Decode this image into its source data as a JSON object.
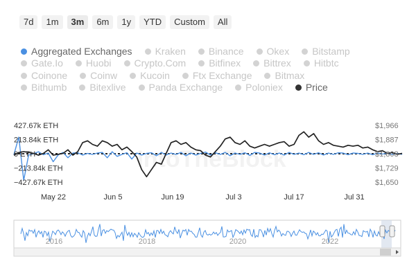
{
  "range_buttons": [
    "7d",
    "1m",
    "3m",
    "6m",
    "1y",
    "YTD",
    "Custom",
    "All"
  ],
  "range_selected": "3m",
  "legend_rows": [
    [
      {
        "label": "Aggregated Exchanges",
        "active": true,
        "color": "#4a90e2"
      },
      {
        "label": "Kraken"
      },
      {
        "label": "Binance"
      },
      {
        "label": "Okex"
      },
      {
        "label": "Bitstamp"
      }
    ],
    [
      {
        "label": "Gate.Io"
      },
      {
        "label": "Huobi"
      },
      {
        "label": "Crypto.Com"
      },
      {
        "label": "Bitfinex"
      },
      {
        "label": "Bittrex"
      },
      {
        "label": "Hitbtc"
      }
    ],
    [
      {
        "label": "Coinone"
      },
      {
        "label": "Coinw"
      },
      {
        "label": "Kucoin"
      },
      {
        "label": "Ftx Exchange"
      },
      {
        "label": "Bitmax"
      }
    ],
    [
      {
        "label": "Bithumb"
      },
      {
        "label": "Bitexlive"
      },
      {
        "label": "Panda Exchange"
      },
      {
        "label": "Poloniex"
      },
      {
        "label": "Price",
        "active": true,
        "color": "#333333"
      }
    ]
  ],
  "watermark": "IntoTheBlock",
  "chart_data": {
    "type": "line",
    "x_tick_labels": [
      "May 22",
      "Jun 5",
      "Jun 19",
      "Jul 3",
      "Jul 17",
      "Jul 31"
    ],
    "y_left_ticks": [
      "427.67k ETH",
      "213.84k ETH",
      "0 ETH",
      "−213.84k ETH",
      "−427.67k ETH"
    ],
    "y_left_values": [
      427670,
      213840,
      0,
      -213840,
      -427670
    ],
    "y_right_ticks": [
      "$1,966",
      "$1,887",
      "$1,808",
      "$1,729",
      "$1,650"
    ],
    "y_right_values": [
      1966,
      1887,
      1808,
      1729,
      1650
    ],
    "series": [
      {
        "name": "Aggregated Exchanges",
        "axis": "left",
        "color": "#4a90e2",
        "values": [
          -15000,
          250000,
          -400000,
          -20000,
          0,
          30000,
          -15000,
          10000,
          -120000,
          -20000,
          20000,
          -60000,
          10000,
          15000,
          -20000,
          5000,
          -10000,
          10000,
          20000,
          -60000,
          30000,
          -40000,
          -10000,
          15000,
          -80000,
          10000,
          -20000,
          5000,
          15000,
          -30000,
          20000,
          -20000,
          10000,
          -10000,
          20000,
          -30000,
          10000,
          -20000,
          5000,
          25000,
          -20000,
          15000,
          -10000,
          20000,
          -30000,
          10000,
          -10000,
          15000,
          -25000,
          20000,
          10000,
          -20000,
          15000,
          -15000,
          10000,
          -20000,
          20000,
          -10000,
          10000,
          -15000,
          20000,
          -10000,
          15000,
          -20000,
          10000,
          -10000,
          15000,
          10000,
          -15000,
          10000,
          5000,
          -10000,
          10000,
          -15000,
          10000,
          -5000,
          10000,
          -10000,
          5000,
          -10000
        ]
      },
      {
        "name": "Price",
        "axis": "right",
        "color": "#222222",
        "values": [
          1800,
          1815,
          1820,
          1815,
          1810,
          1800,
          1810,
          1830,
          1800,
          1805,
          1810,
          1830,
          1800,
          1820,
          1870,
          1880,
          1860,
          1850,
          1880,
          1870,
          1850,
          1860,
          1830,
          1845,
          1820,
          1790,
          1720,
          1680,
          1720,
          1760,
          1750,
          1810,
          1870,
          1880,
          1860,
          1870,
          1845,
          1830,
          1825,
          1800,
          1790,
          1820,
          1850,
          1890,
          1900,
          1870,
          1860,
          1880,
          1850,
          1840,
          1850,
          1860,
          1850,
          1860,
          1870,
          1875,
          1850,
          1860,
          1910,
          1930,
          1900,
          1920,
          1880,
          1860,
          1870,
          1855,
          1850,
          1845,
          1855,
          1850,
          1855,
          1840,
          1845,
          1830,
          1820,
          1825,
          1810,
          1815,
          1805,
          1810
        ]
      }
    ],
    "navigator": {
      "year_labels": [
        "2016",
        "2018",
        "2020",
        "2022"
      ]
    }
  }
}
